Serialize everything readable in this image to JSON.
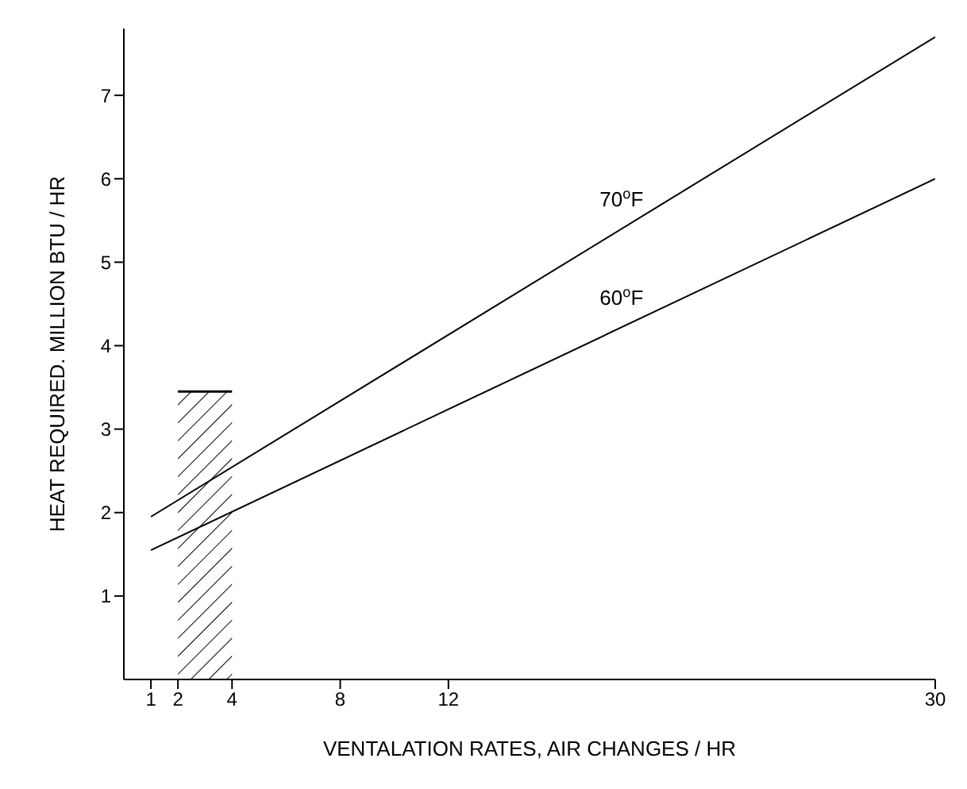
{
  "chart_data": {
    "type": "line",
    "xlabel": "VENTALATION RATES, AIR CHANGES / HR",
    "ylabel": "HEAT REQUIRED. MILLION BTU / HR",
    "xlim": [
      0,
      30
    ],
    "xticks": [
      1,
      2,
      4,
      8,
      12,
      30
    ],
    "ylim": [
      0,
      7.8
    ],
    "yticks": [
      1,
      2,
      3,
      4,
      5,
      6,
      7
    ],
    "grid": false,
    "legend": false,
    "marker": "none",
    "series": [
      {
        "name": "70$^{o}$F",
        "color": "#000000",
        "x": [
          1,
          30
        ],
        "values": [
          1.95,
          7.7
        ]
      },
      {
        "name": "60$^{o}$F",
        "color": "#000000",
        "x": [
          1,
          30
        ],
        "values": [
          1.55,
          6.0
        ]
      },
      {
        "type": "area",
        "color": "#000000",
        "x": [
          2,
          4
        ],
        "values": [
          3.45,
          3.45
        ]
      }
    ]
  }
}
